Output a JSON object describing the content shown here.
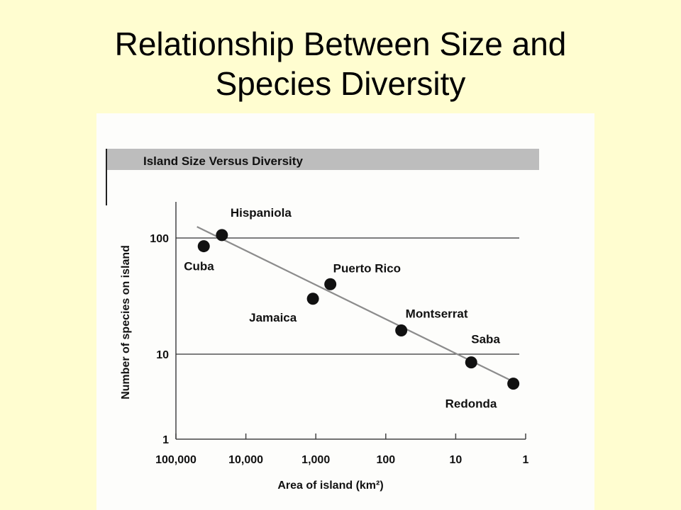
{
  "slide": {
    "title_line1": "Relationship Between Size and",
    "title_line2": "Species Diversity"
  },
  "colors": {
    "background": "#fffdd0",
    "figure_background": "#fdfdfb",
    "header_band": "#bdbdbd",
    "points": "#111111",
    "trend_line": "#8c8c8c"
  },
  "chart_data": {
    "type": "scatter",
    "title": "Island Size Versus Diversity",
    "xlabel": "Area of island (km²)",
    "ylabel": "Number of species on island",
    "x_scale": "log",
    "x_reversed": true,
    "y_scale": "log",
    "xlim": [
      100000,
      1
    ],
    "ylim": [
      1,
      200
    ],
    "x_ticks": [
      100000,
      10000,
      1000,
      100,
      10,
      1
    ],
    "x_tick_labels": [
      "100,000",
      "10,000",
      "1,000",
      "100",
      "10",
      "1"
    ],
    "y_ticks": [
      1,
      10,
      100
    ],
    "y_tick_labels": [
      "1",
      "10",
      "100"
    ],
    "grid": "horizontal lines at 10 and 100",
    "points": [
      {
        "label": "Cuba",
        "x": 40000,
        "y": 85
      },
      {
        "label": "Hispaniola",
        "x": 22000,
        "y": 106
      },
      {
        "label": "Jamaica",
        "x": 1100,
        "y": 30
      },
      {
        "label": "Puerto Rico",
        "x": 620,
        "y": 40
      },
      {
        "label": "Montserrat",
        "x": 60,
        "y": 16
      },
      {
        "label": "Saba",
        "x": 6,
        "y": 8
      },
      {
        "label": "Redonda",
        "x": 1.5,
        "y": 4.5
      }
    ],
    "trend_line": {
      "x": [
        50000,
        1.7
      ],
      "y": [
        125,
        5
      ]
    }
  }
}
